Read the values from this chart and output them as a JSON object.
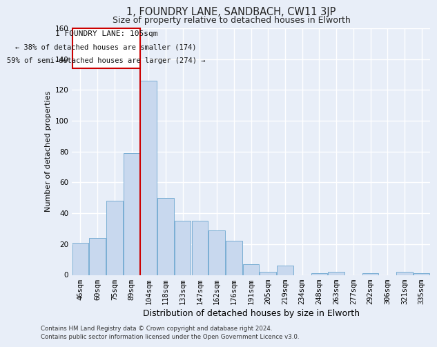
{
  "title_line1": "1, FOUNDRY LANE, SANDBACH, CW11 3JP",
  "title_line2": "Size of property relative to detached houses in Elworth",
  "xlabel": "Distribution of detached houses by size in Elworth",
  "ylabel": "Number of detached properties",
  "categories": [
    "46sqm",
    "60sqm",
    "75sqm",
    "89sqm",
    "104sqm",
    "118sqm",
    "133sqm",
    "147sqm",
    "162sqm",
    "176sqm",
    "191sqm",
    "205sqm",
    "219sqm",
    "234sqm",
    "248sqm",
    "263sqm",
    "277sqm",
    "292sqm",
    "306sqm",
    "321sqm",
    "335sqm"
  ],
  "values": [
    21,
    24,
    48,
    79,
    126,
    50,
    35,
    35,
    29,
    22,
    7,
    2,
    6,
    0,
    1,
    2,
    0,
    1,
    0,
    2,
    1
  ],
  "bar_color": "#c8d8ee",
  "bar_edge_color": "#7aaed4",
  "red_line_index": 4,
  "ylim": [
    0,
    160
  ],
  "yticks": [
    0,
    20,
    40,
    60,
    80,
    100,
    120,
    140,
    160
  ],
  "annotation_line1": "1 FOUNDRY LANE: 105sqm",
  "annotation_line2": "← 38% of detached houses are smaller (174)",
  "annotation_line3": "59% of semi-detached houses are larger (274) →",
  "footer_line1": "Contains HM Land Registry data © Crown copyright and database right 2024.",
  "footer_line2": "Contains public sector information licensed under the Open Government Licence v3.0.",
  "bg_color": "#e8eef8",
  "plot_bg_color": "#e8eef8",
  "grid_color": "#ffffff",
  "ann_box_facecolor": "#ffffff",
  "ann_box_edgecolor": "#cc0000",
  "title1_fontsize": 10.5,
  "title2_fontsize": 9,
  "ylabel_fontsize": 8,
  "xlabel_fontsize": 9,
  "tick_fontsize": 7.5,
  "ann_fontsize": 8
}
